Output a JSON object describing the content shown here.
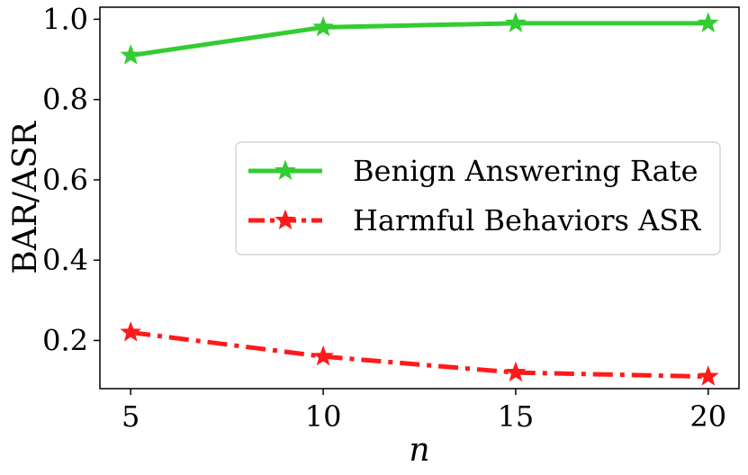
{
  "chart_data": {
    "type": "line",
    "title": "",
    "xlabel": "n",
    "ylabel": "BAR/ASR",
    "x": [
      5,
      10,
      15,
      20
    ],
    "xticks": [
      5,
      10,
      15,
      20
    ],
    "xlim": [
      4.2,
      20.8
    ],
    "yticks": [
      0.2,
      0.4,
      0.6,
      0.8,
      1.0
    ],
    "ytick_labels": [
      "0.2",
      "0.4",
      "0.6",
      "0.8",
      "1.0"
    ],
    "ylim": [
      0.08,
      1.03
    ],
    "grid": false,
    "legend_position": "center-right",
    "series": [
      {
        "name": "Benign Answering Rate",
        "values": [
          0.91,
          0.98,
          0.99,
          0.99
        ],
        "color": "#33cc33",
        "line_style": "solid",
        "marker": "star"
      },
      {
        "name": "Harmful Behaviors ASR",
        "values": [
          0.22,
          0.16,
          0.12,
          0.11
        ],
        "color": "#ff1a1a",
        "line_style": "dash-dot",
        "marker": "star"
      }
    ]
  }
}
